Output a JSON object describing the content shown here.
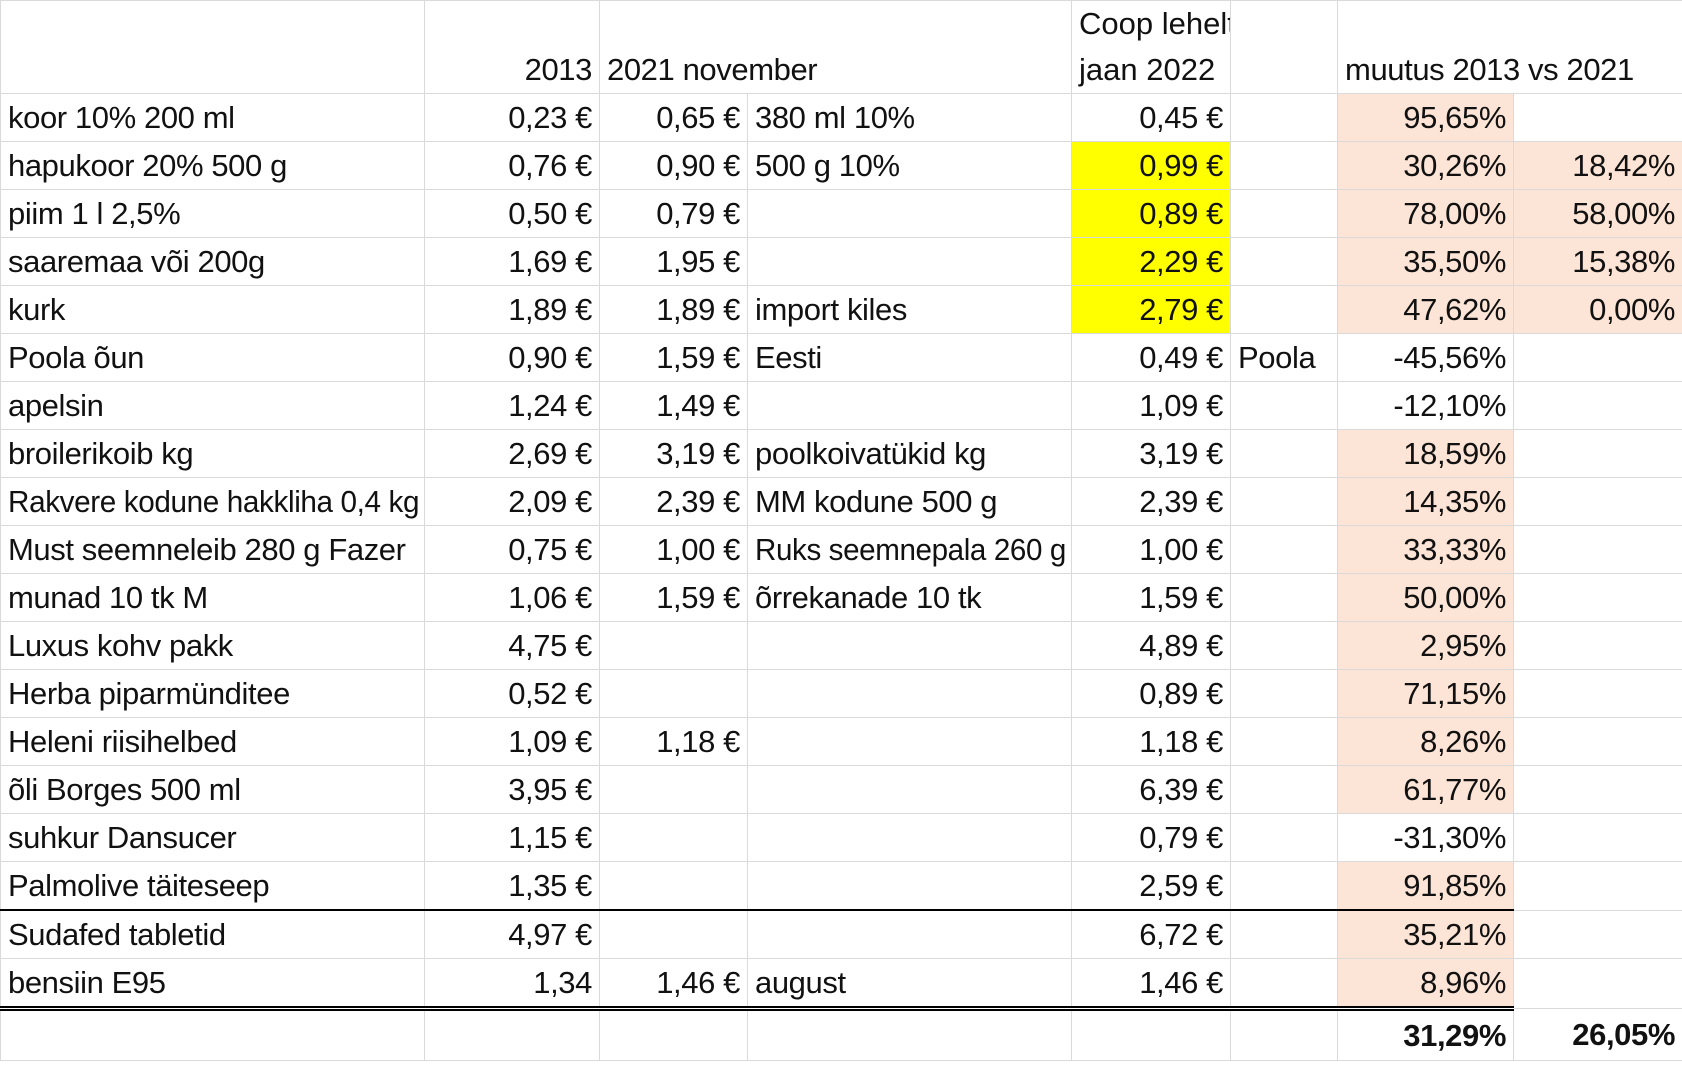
{
  "headers": {
    "col_2013": "2013",
    "col_2021": "2021 november",
    "coop_line1": "Coop lehelt",
    "coop_line2": "jaan 2022",
    "change": "muutus 2013 vs 2021"
  },
  "rows": [
    {
      "item": "koor 10% 200 ml",
      "p2013": "0,23 €",
      "p2021": "0,65 €",
      "note": "380 ml 10%",
      "coop": "0,45 €",
      "note2": "",
      "change": "95,65%",
      "extra": ""
    },
    {
      "item": "hapukoor  20% 500 g",
      "p2013": "0,76 €",
      "p2021": "0,90 €",
      "note": "500 g 10%",
      "coop": "0,99 €",
      "note2": "",
      "change": "30,26%",
      "extra": "18,42%"
    },
    {
      "item": "piim 1 l 2,5%",
      "p2013": "0,50 €",
      "p2021": "0,79 €",
      "note": "",
      "coop": "0,89 €",
      "note2": "",
      "change": "78,00%",
      "extra": "58,00%"
    },
    {
      "item": "saaremaa või 200g",
      "p2013": "1,69 €",
      "p2021": "1,95 €",
      "note": "",
      "coop": "2,29 €",
      "note2": "",
      "change": "35,50%",
      "extra": "15,38%"
    },
    {
      "item": "kurk",
      "p2013": "1,89 €",
      "p2021": "1,89 €",
      "note": "import kiles",
      "coop": "2,79 €",
      "note2": "",
      "change": "47,62%",
      "extra": "0,00%"
    },
    {
      "item": "Poola õun",
      "p2013": "0,90 €",
      "p2021": "1,59 €",
      "note": "Eesti",
      "coop": "0,49 €",
      "note2": "Poola",
      "change": "-45,56%",
      "extra": ""
    },
    {
      "item": "apelsin",
      "p2013": "1,24 €",
      "p2021": "1,49 €",
      "note": "",
      "coop": "1,09 €",
      "note2": "",
      "change": "-12,10%",
      "extra": ""
    },
    {
      "item": "broilerikoib kg",
      "p2013": "2,69 €",
      "p2021": "3,19 €",
      "note": "poolkoivatükid kg",
      "coop": "3,19 €",
      "note2": "",
      "change": "18,59%",
      "extra": ""
    },
    {
      "item": "Rakvere kodune hakkliha 0,4 kg",
      "p2013": "2,09 €",
      "p2021": "2,39 €",
      "note": "MM kodune 500 g",
      "coop": "2,39 €",
      "note2": "",
      "change": "14,35%",
      "extra": ""
    },
    {
      "item": "Must seemneleib 280 g Fazer",
      "p2013": "0,75 €",
      "p2021": "1,00 €",
      "note": "Ruks seemnepala 260 g",
      "coop": "1,00 €",
      "note2": "",
      "change": "33,33%",
      "extra": ""
    },
    {
      "item": "munad 10 tk M",
      "p2013": "1,06 €",
      "p2021": "1,59 €",
      "note": "õrrekanade 10 tk",
      "coop": "1,59 €",
      "note2": "",
      "change": "50,00%",
      "extra": ""
    },
    {
      "item": "Luxus kohv pakk",
      "p2013": "4,75 €",
      "p2021": "",
      "note": "",
      "coop": "4,89 €",
      "note2": "",
      "change": "2,95%",
      "extra": ""
    },
    {
      "item": "Herba piparmünditee",
      "p2013": "0,52 €",
      "p2021": "",
      "note": "",
      "coop": "0,89 €",
      "note2": "",
      "change": "71,15%",
      "extra": ""
    },
    {
      "item": "Heleni riisihelbed",
      "p2013": "1,09 €",
      "p2021": "1,18 €",
      "note": "",
      "coop": "1,18 €",
      "note2": "",
      "change": "8,26%",
      "extra": ""
    },
    {
      "item": "õli Borges 500 ml",
      "p2013": "3,95 €",
      "p2021": "",
      "note": "",
      "coop": "6,39 €",
      "note2": "",
      "change": "61,77%",
      "extra": ""
    },
    {
      "item": "suhkur Dansucer",
      "p2013": "1,15 €",
      "p2021": "",
      "note": "",
      "coop": "0,79 €",
      "note2": "",
      "change": "-31,30%",
      "extra": ""
    },
    {
      "item": "Palmolive täiteseep",
      "p2013": "1,35 €",
      "p2021": "",
      "note": "",
      "coop": "2,59 €",
      "note2": "",
      "change": "91,85%",
      "extra": ""
    },
    {
      "item": "Sudafed tabletid",
      "p2013": "4,97 €",
      "p2021": "",
      "note": "",
      "coop": "6,72 €",
      "note2": "",
      "change": "35,21%",
      "extra": ""
    },
    {
      "item": "bensiin E95",
      "p2013": "1,34",
      "p2021": "1,46 €",
      "note": "august",
      "coop": "1,46 €",
      "note2": "",
      "change": "8,96%",
      "extra": ""
    }
  ],
  "totals": {
    "change": "31,29%",
    "extra": "26,05%"
  },
  "colors": {
    "pink": "#fce4d6",
    "yellow": "#ffff00",
    "grid": "#dadada"
  }
}
